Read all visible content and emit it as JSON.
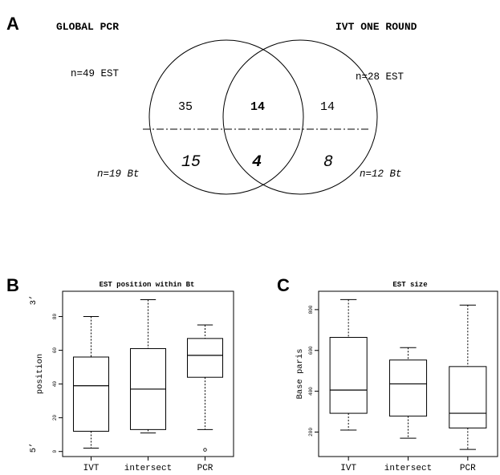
{
  "panels": {
    "a": "A",
    "b": "B",
    "c": "C"
  },
  "venn": {
    "left_title": "GLOBAL PCR",
    "right_title": "IVT ONE ROUND",
    "left_est_label": "n=49 EST",
    "right_est_label": "n=28 EST",
    "left_bt_label": "n=19 Bt",
    "right_bt_label": "n=12 Bt",
    "est_counts": {
      "left_only": "35",
      "both": "14",
      "right_only": "14"
    },
    "bt_counts": {
      "left_only": "15",
      "both": "4",
      "right_only": "8"
    }
  },
  "chart_data": [
    {
      "type": "box",
      "title": "EST position within Bt",
      "ylabel": "position",
      "ylim": [
        -3,
        95
      ],
      "ticks": [
        0,
        20,
        40,
        60,
        80
      ],
      "tick_labels": [
        "0",
        "20",
        "40",
        "60",
        "80"
      ],
      "end_labels": {
        "top": "3’",
        "bottom": "5’"
      },
      "categories": [
        "IVT",
        "intersect",
        "PCR"
      ],
      "boxes": [
        {
          "min": 2,
          "q1": 12,
          "median": 39,
          "q3": 56,
          "max": 80,
          "outliers": []
        },
        {
          "min": 11,
          "q1": 13,
          "median": 37,
          "q3": 61,
          "max": 90,
          "outliers": []
        },
        {
          "min": 13,
          "q1": 44,
          "median": 57,
          "q3": 67,
          "max": 75,
          "outliers": [
            1
          ]
        }
      ]
    },
    {
      "type": "box",
      "title": "EST size",
      "ylabel": "Base paris",
      "ylim": [
        80,
        890
      ],
      "ticks": [
        200,
        400,
        600,
        800
      ],
      "tick_labels": [
        "200",
        "400",
        "600",
        "800"
      ],
      "categories": [
        "IVT",
        "intersect",
        "PCR"
      ],
      "boxes": [
        {
          "min": 210,
          "q1": 292,
          "median": 406,
          "q3": 664,
          "max": 849,
          "outliers": []
        },
        {
          "min": 170,
          "q1": 278,
          "median": 436,
          "q3": 553,
          "max": 614,
          "outliers": []
        },
        {
          "min": 115,
          "q1": 220,
          "median": 292,
          "q3": 521,
          "max": 822,
          "outliers": []
        }
      ]
    }
  ]
}
